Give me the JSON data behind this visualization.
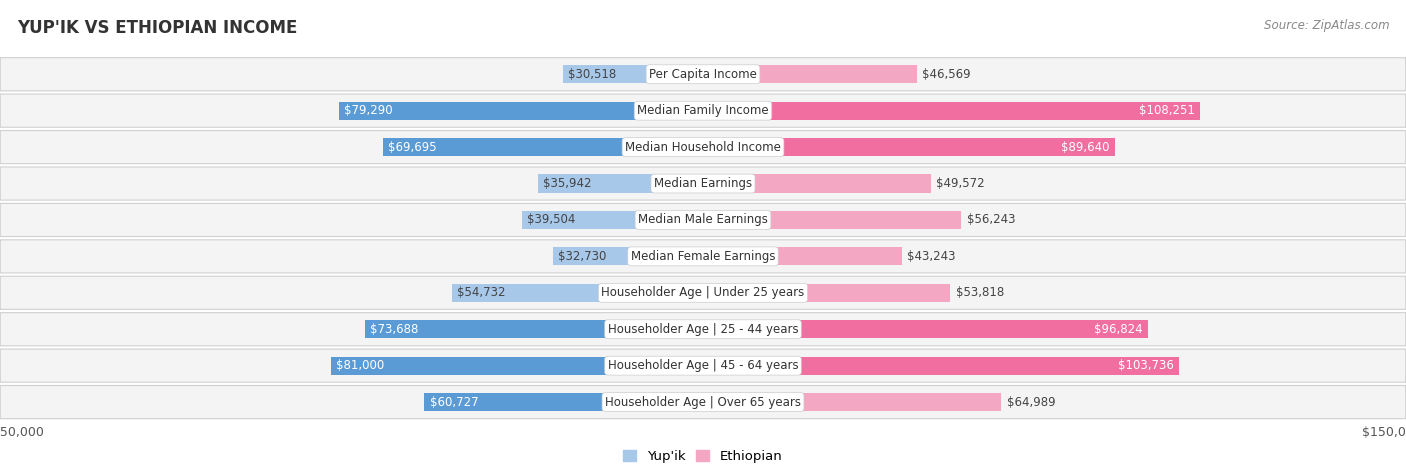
{
  "title": "YUP'IK VS ETHIOPIAN INCOME",
  "source": "Source: ZipAtlas.com",
  "categories": [
    "Per Capita Income",
    "Median Family Income",
    "Median Household Income",
    "Median Earnings",
    "Median Male Earnings",
    "Median Female Earnings",
    "Householder Age | Under 25 years",
    "Householder Age | 25 - 44 years",
    "Householder Age | 45 - 64 years",
    "Householder Age | Over 65 years"
  ],
  "yupik_values": [
    30518,
    79290,
    69695,
    35942,
    39504,
    32730,
    54732,
    73688,
    81000,
    60727
  ],
  "ethiopian_values": [
    46569,
    108251,
    89640,
    49572,
    56243,
    43243,
    53818,
    96824,
    103736,
    64989
  ],
  "yupik_labels": [
    "$30,518",
    "$79,290",
    "$69,695",
    "$35,942",
    "$39,504",
    "$32,730",
    "$54,732",
    "$73,688",
    "$81,000",
    "$60,727"
  ],
  "ethiopian_labels": [
    "$46,569",
    "$108,251",
    "$89,640",
    "$49,572",
    "$56,243",
    "$43,243",
    "$53,818",
    "$96,824",
    "$103,736",
    "$64,989"
  ],
  "yupik_color_light": "#a8c8ea",
  "yupik_color_dark": "#5b9bd5",
  "ethiopian_color_light": "#f4a7c3",
  "ethiopian_color_dark": "#f06ea0",
  "background_color": "#ffffff",
  "row_bg_light": "#f2f2f2",
  "row_bg_darker": "#e8e8e8",
  "max_value": 150000,
  "legend_yupik": "Yup'ik",
  "legend_ethiopian": "Ethiopian",
  "bar_height": 0.5,
  "yupik_large_threshold": 55000,
  "ethiopian_large_threshold": 75000,
  "label_fontsize": 8.5,
  "category_fontsize": 8.5
}
